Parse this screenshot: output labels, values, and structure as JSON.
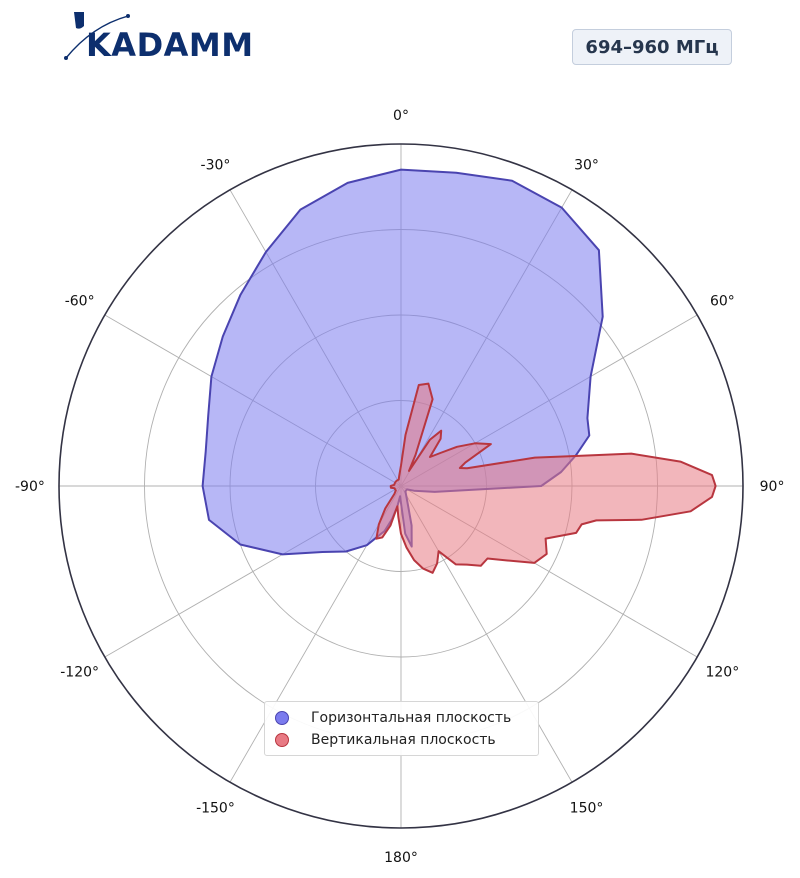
{
  "header": {
    "logo_text": "KADAMM",
    "frequency_badge": "694–960 МГц"
  },
  "colors": {
    "horizontal_fill": "#7b7bee",
    "horizontal_stroke": "#4a44b0",
    "vertical_fill": "#e87a84",
    "vertical_stroke": "#b8363f",
    "grid": "#b0b0b0",
    "outer_ring": "#333344"
  },
  "chart_data": {
    "type": "polar",
    "title": "",
    "angle_zero": "top",
    "angle_direction": "clockwise",
    "angle_ticks": [
      0,
      30,
      60,
      90,
      120,
      150,
      180,
      -150,
      -120,
      -90,
      -60,
      -30
    ],
    "angle_tick_labels": [
      "0°",
      "30°",
      "60°",
      "90°",
      "120°",
      "150°",
      "180°",
      "-150°",
      "-120°",
      "-90°",
      "-60°",
      "-30°"
    ],
    "radial_ticks": [
      0.25,
      0.5,
      0.75
    ],
    "radial_range": [
      0,
      1
    ],
    "grid": true,
    "legend_position": "bottom-center",
    "series": [
      {
        "name": "Горизонтальная плоскость",
        "angles_deg": [
          0,
          10,
          20,
          30,
          40,
          50,
          60,
          70,
          75,
          80,
          85,
          90,
          100,
          110,
          120,
          130,
          140,
          150,
          160,
          165,
          170,
          175,
          180,
          185,
          190,
          195,
          200,
          210,
          220,
          230,
          240,
          250,
          260,
          270,
          280,
          290,
          300,
          310,
          320,
          330,
          340,
          350,
          360
        ],
        "values": [
          0.925,
          0.93,
          0.95,
          0.94,
          0.9,
          0.77,
          0.64,
          0.58,
          0.57,
          0.52,
          0.47,
          0.41,
          0.1,
          0.04,
          0.02,
          0.02,
          0.02,
          0.03,
          0.06,
          0.12,
          0.18,
          0.14,
          0.05,
          0.03,
          0.06,
          0.1,
          0.14,
          0.2,
          0.25,
          0.3,
          0.4,
          0.5,
          0.57,
          0.58,
          0.58,
          0.6,
          0.64,
          0.68,
          0.73,
          0.79,
          0.86,
          0.9,
          0.925
        ]
      },
      {
        "name": "Вертикальная плоскость",
        "angles_deg": [
          0,
          5,
          10,
          15,
          20,
          25,
          28,
          32,
          36,
          40,
          45,
          50,
          55,
          60,
          65,
          70,
          73,
          75,
          78,
          80,
          82,
          85,
          88,
          90,
          92,
          95,
          98,
          100,
          102,
          105,
          110,
          115,
          120,
          125,
          130,
          135,
          140,
          145,
          150,
          155,
          160,
          165,
          170,
          175,
          180,
          185,
          190,
          195,
          200,
          205,
          210,
          215,
          220,
          230,
          240,
          250,
          260,
          270,
          280,
          290,
          300,
          310,
          320,
          330,
          340,
          350,
          360
        ],
        "values": [
          0.06,
          0.15,
          0.3,
          0.31,
          0.27,
          0.1,
          0.05,
          0.16,
          0.2,
          0.18,
          0.12,
          0.15,
          0.2,
          0.25,
          0.29,
          0.2,
          0.18,
          0.2,
          0.4,
          0.5,
          0.68,
          0.82,
          0.91,
          0.92,
          0.91,
          0.85,
          0.71,
          0.58,
          0.54,
          0.53,
          0.45,
          0.47,
          0.45,
          0.38,
          0.33,
          0.33,
          0.3,
          0.28,
          0.22,
          0.25,
          0.27,
          0.25,
          0.22,
          0.18,
          0.14,
          0.09,
          0.06,
          0.12,
          0.16,
          0.17,
          0.13,
          0.08,
          0.03,
          0.02,
          0.02,
          0.02,
          0.03,
          0.03,
          0.02,
          0.02,
          0.02,
          0.02,
          0.02,
          0.02,
          0.02,
          0.03,
          0.06
        ]
      }
    ]
  }
}
